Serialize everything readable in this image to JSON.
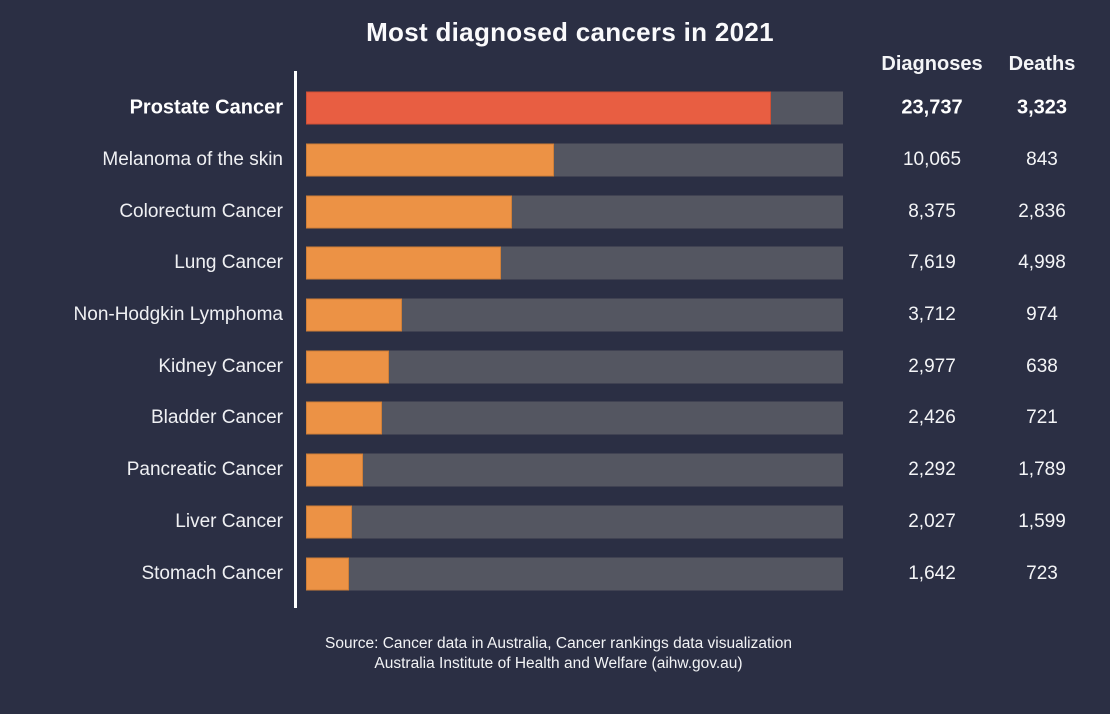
{
  "chart": {
    "title": "Most diagnosed cancers in 2021",
    "columns": {
      "diagnoses": "Diagnoses",
      "deaths": "Deaths"
    }
  },
  "chart_data": {
    "type": "bar",
    "orientation": "horizontal",
    "title": "Most diagnosed cancers in 2021",
    "value_columns": [
      "Diagnoses",
      "Deaths"
    ],
    "legend": "none",
    "grid": false,
    "categories": [
      "Prostate Cancer",
      "Melanoma of the skin",
      "Colorectum Cancer",
      "Lung Cancer",
      "Non-Hodgkin Lymphoma",
      "Kidney Cancer",
      "Bladder Cancer",
      "Pancreatic Cancer",
      "Liver Cancer",
      "Stomach Cancer"
    ],
    "series": [
      {
        "name": "Diagnoses",
        "values": [
          23737,
          10065,
          8375,
          7619,
          3712,
          2977,
          2426,
          2292,
          2027,
          1642
        ]
      },
      {
        "name": "Deaths",
        "values": [
          3323,
          843,
          2836,
          4998,
          974,
          638,
          721,
          1789,
          1599,
          723
        ]
      }
    ],
    "rows": [
      {
        "label": "Prostate Cancer",
        "diagnoses": 23737,
        "deaths": 3323,
        "diagnoses_fmt": "23,737",
        "deaths_fmt": "3,323",
        "bar_fraction": 0.866,
        "highlighted": true
      },
      {
        "label": "Melanoma of the skin",
        "diagnoses": 10065,
        "deaths": 843,
        "diagnoses_fmt": "10,065",
        "deaths_fmt": "843",
        "bar_fraction": 0.462,
        "highlighted": false
      },
      {
        "label": "Colorectum Cancer",
        "diagnoses": 8375,
        "deaths": 2836,
        "diagnoses_fmt": "8,375",
        "deaths_fmt": "2,836",
        "bar_fraction": 0.384,
        "highlighted": false
      },
      {
        "label": "Lung Cancer",
        "diagnoses": 7619,
        "deaths": 4998,
        "diagnoses_fmt": "7,619",
        "deaths_fmt": "4,998",
        "bar_fraction": 0.363,
        "highlighted": false
      },
      {
        "label": "Non-Hodgkin Lymphoma",
        "diagnoses": 3712,
        "deaths": 974,
        "diagnoses_fmt": "3,712",
        "deaths_fmt": "974",
        "bar_fraction": 0.179,
        "highlighted": false
      },
      {
        "label": "Kidney Cancer",
        "diagnoses": 2977,
        "deaths": 638,
        "diagnoses_fmt": "2,977",
        "deaths_fmt": "638",
        "bar_fraction": 0.155,
        "highlighted": false
      },
      {
        "label": "Bladder Cancer",
        "diagnoses": 2426,
        "deaths": 721,
        "diagnoses_fmt": "2,426",
        "deaths_fmt": "721",
        "bar_fraction": 0.142,
        "highlighted": false
      },
      {
        "label": "Pancreatic Cancer",
        "diagnoses": 2292,
        "deaths": 1789,
        "diagnoses_fmt": "2,292",
        "deaths_fmt": "1,789",
        "bar_fraction": 0.106,
        "highlighted": false
      },
      {
        "label": "Liver Cancer",
        "diagnoses": 2027,
        "deaths": 1599,
        "diagnoses_fmt": "2,027",
        "deaths_fmt": "1,599",
        "bar_fraction": 0.086,
        "highlighted": false
      },
      {
        "label": "Stomach Cancer",
        "diagnoses": 1642,
        "deaths": 723,
        "diagnoses_fmt": "1,642",
        "deaths_fmt": "723",
        "bar_fraction": 0.08,
        "highlighted": false
      }
    ],
    "colors": {
      "background": "#2B2F44",
      "bar_track": "#545661",
      "bar_fill": "#EC9245",
      "bar_highlight": "#E85E42",
      "axis_line": "#FFFFFF",
      "text": "#F4F5F7"
    }
  },
  "source": {
    "line1": "Source: Cancer data in Australia, Cancer rankings data visualization",
    "line2": "Australia Institute of Health and Welfare (aihw.gov.au)"
  }
}
